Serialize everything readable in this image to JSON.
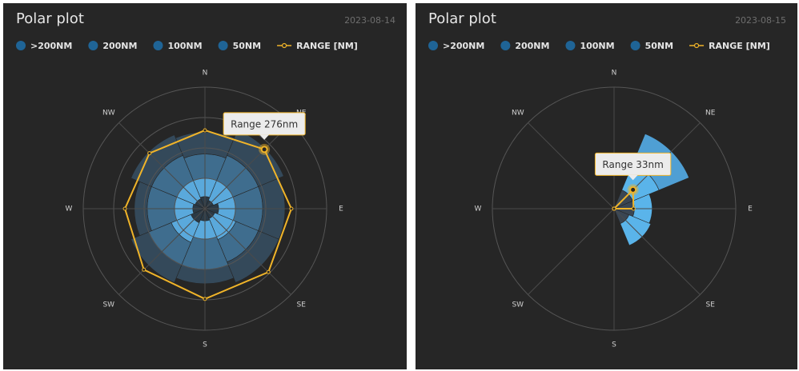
{
  "chart_data": [
    {
      "type": "polar",
      "title": "Polar plot",
      "subtitle": "2023-08-14",
      "categories": [
        "N",
        "NE",
        "E",
        "SE",
        "S",
        "SW",
        "W",
        "NW"
      ],
      "rlim": [
        0,
        400
      ],
      "rticks": [
        100,
        200,
        300,
        400
      ],
      "grid": true,
      "stacked": true,
      "series": [
        {
          "name": ">200NM",
          "color": "#34495a",
          "values": [
            72,
            90,
            73,
            73,
            47,
            63,
            42,
            73
          ]
        },
        {
          "name": "200NM",
          "color": "#3f6d8e",
          "values": [
            80,
            90,
            90,
            80,
            100,
            80,
            90,
            90
          ]
        },
        {
          "name": "100NM",
          "color": "#5aa9dc",
          "values": [
            60,
            70,
            55,
            75,
            60,
            70,
            60,
            65
          ]
        },
        {
          "name": "50NM",
          "color": "#2b3a46",
          "values": [
            40,
            30,
            45,
            35,
            40,
            50,
            40,
            35
          ]
        }
      ],
      "range": {
        "name": "RANGE [NM]",
        "color": "#f0b429",
        "values": [
          258,
          276,
          284,
          295,
          297,
          284,
          263,
          258
        ]
      },
      "annotation": "Range 276nm"
    },
    {
      "type": "polar",
      "title": "Polar plot",
      "subtitle": "2023-08-15",
      "categories": [
        "N",
        "NE",
        "E",
        "SE",
        "S",
        "SW",
        "W",
        "NW"
      ],
      "rlim": [
        0,
        150
      ],
      "rticks": [
        150
      ],
      "grid": true,
      "stacked": true,
      "series": [
        {
          "name": ">200NM",
          "color": "#34495a",
          "values": [
            0,
            0,
            0,
            0,
            0,
            0,
            0,
            0
          ]
        },
        {
          "name": "200NM",
          "color": "#4f9fd4",
          "values": [
            0,
            40,
            0,
            0,
            0,
            0,
            0,
            0
          ]
        },
        {
          "name": "100NM",
          "color": "#5ab4ea",
          "values": [
            0,
            35,
            22,
            29,
            0,
            0,
            0,
            0
          ]
        },
        {
          "name": "50NM",
          "color": "#3a4653",
          "values": [
            0,
            25,
            25,
            20,
            0,
            0,
            0,
            0
          ]
        }
      ],
      "range": {
        "name": "RANGE [NM]",
        "color": "#f0b429",
        "values": [
          0,
          33,
          24,
          0,
          0,
          0,
          0,
          0
        ]
      },
      "annotation": "Range 33nm"
    }
  ]
}
